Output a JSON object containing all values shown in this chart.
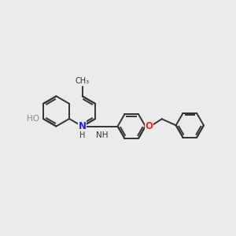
{
  "background_color": "#ebebeb",
  "bond_color": "#333333",
  "atom_colors": {
    "N": "#2020ff",
    "O_HO": "#888888",
    "O_ether": "#ff2020",
    "C": "#333333"
  },
  "figsize": [
    3.0,
    3.0
  ],
  "dpi": 100,
  "xlim": [
    0,
    12
  ],
  "ylim": [
    0,
    10
  ]
}
